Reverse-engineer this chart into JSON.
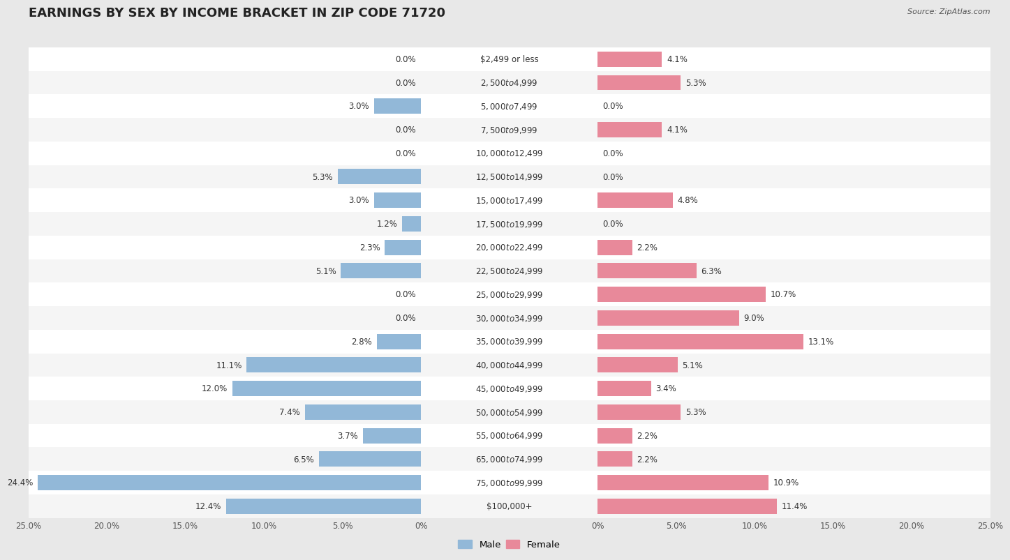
{
  "title": "EARNINGS BY SEX BY INCOME BRACKET IN ZIP CODE 71720",
  "source": "Source: ZipAtlas.com",
  "categories": [
    "$2,499 or less",
    "$2,500 to $4,999",
    "$5,000 to $7,499",
    "$7,500 to $9,999",
    "$10,000 to $12,499",
    "$12,500 to $14,999",
    "$15,000 to $17,499",
    "$17,500 to $19,999",
    "$20,000 to $22,499",
    "$22,500 to $24,999",
    "$25,000 to $29,999",
    "$30,000 to $34,999",
    "$35,000 to $39,999",
    "$40,000 to $44,999",
    "$45,000 to $49,999",
    "$50,000 to $54,999",
    "$55,000 to $64,999",
    "$65,000 to $74,999",
    "$75,000 to $99,999",
    "$100,000+"
  ],
  "male_values": [
    0.0,
    0.0,
    3.0,
    0.0,
    0.0,
    5.3,
    3.0,
    1.2,
    2.3,
    5.1,
    0.0,
    0.0,
    2.8,
    11.1,
    12.0,
    7.4,
    3.7,
    6.5,
    24.4,
    12.4
  ],
  "female_values": [
    4.1,
    5.3,
    0.0,
    4.1,
    0.0,
    0.0,
    4.8,
    0.0,
    2.2,
    6.3,
    10.7,
    9.0,
    13.1,
    5.1,
    3.4,
    5.3,
    2.2,
    2.2,
    10.9,
    11.4
  ],
  "male_color": "#92b8d8",
  "female_color": "#e8899a",
  "male_label": "Male",
  "female_label": "Female",
  "xlim": 25.0,
  "background_color": "#e8e8e8",
  "bar_background_odd": "#f5f5f5",
  "bar_background_even": "#ffffff",
  "title_fontsize": 13,
  "label_fontsize": 8.5,
  "tick_fontsize": 8.5,
  "value_fontsize": 8.5
}
